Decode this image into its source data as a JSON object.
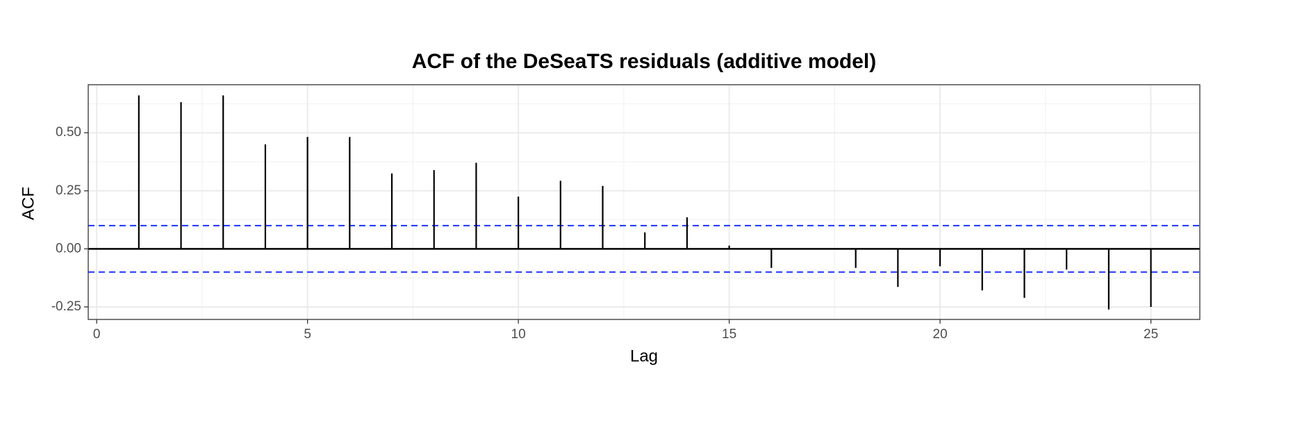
{
  "chart_data": {
    "type": "acf",
    "title": "ACF of the DeSeaTS residuals (additive model)",
    "x_label": "Lag",
    "y_label": "ACF",
    "x": [
      1,
      2,
      3,
      4,
      5,
      6,
      7,
      8,
      9,
      10,
      11,
      12,
      13,
      14,
      15,
      16,
      17,
      18,
      19,
      20,
      21,
      22,
      23,
      24,
      25
    ],
    "values": [
      0.661,
      0.632,
      0.661,
      0.45,
      0.482,
      0.482,
      0.325,
      0.339,
      0.371,
      0.225,
      0.293,
      0.271,
      0.071,
      0.136,
      0.014,
      -0.082,
      0.002,
      -0.082,
      -0.164,
      -0.075,
      -0.179,
      -0.211,
      -0.089,
      -0.261,
      -0.25
    ],
    "color": "#000000",
    "hlines": [
      {
        "value": 0,
        "color": "#000000",
        "dashed": false
      },
      {
        "value": 0.1,
        "color": "#1a33ff",
        "dashed": true
      },
      {
        "value": -0.1,
        "color": "#1a33ff",
        "dashed": true
      }
    ],
    "xlim": [
      -0.2,
      26.16
    ],
    "xticks": [
      0,
      5,
      10,
      15,
      20,
      25
    ],
    "ylim": [
      -0.304,
      0.707
    ],
    "yticks": [
      {
        "value": -0.25,
        "label": "-0.25"
      },
      {
        "value": 0,
        "label": "0.00"
      },
      {
        "value": 0.25,
        "label": "0.25"
      },
      {
        "value": 0.5,
        "label": "0.50"
      }
    ],
    "grid": true
  }
}
